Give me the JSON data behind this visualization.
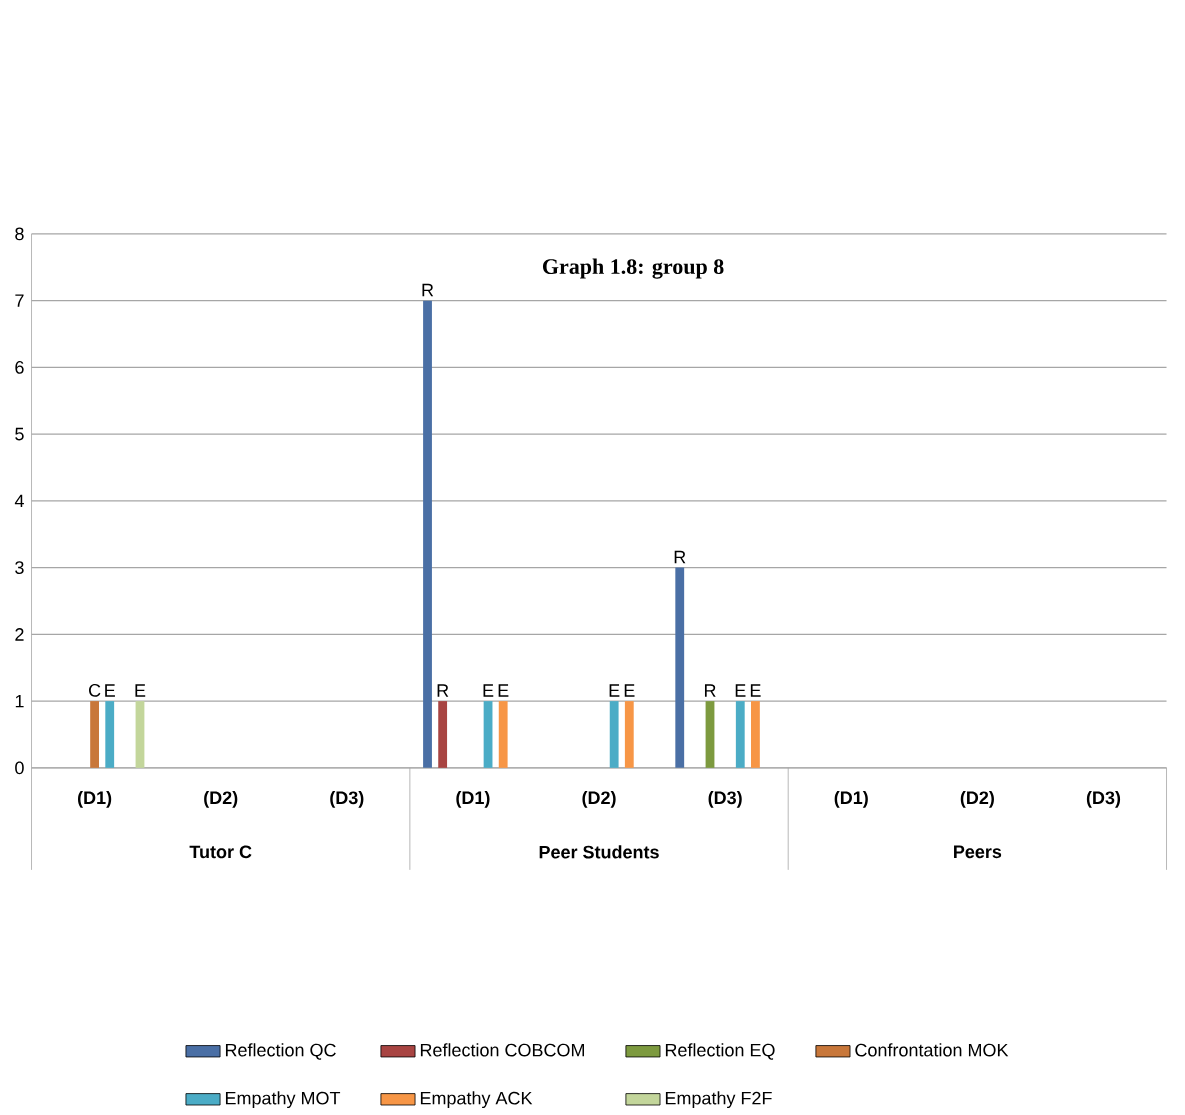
{
  "chart_data": {
    "type": "bar",
    "title": "Graph 1.8: group 8",
    "categories": [
      "(D1)",
      "(D2)",
      "(D3)",
      "(D1)",
      "(D2)",
      "(D3)",
      "(D1)",
      "(D2)",
      "(D3)"
    ],
    "annotations": [
      "Tutor C",
      "Peer Students",
      "Peers"
    ],
    "series": [
      {
        "name": "Reflection QC",
        "color": "#4a6fa5",
        "values": [
          0,
          0,
          0,
          7,
          0,
          3,
          0,
          0,
          0
        ],
        "value_labels": [
          null,
          null,
          null,
          "R",
          null,
          "R",
          null,
          null,
          null
        ]
      },
      {
        "name": "Reflection COBCOM",
        "color": "#a84442",
        "values": [
          0,
          0,
          0,
          1,
          0,
          0,
          0,
          0,
          0
        ],
        "value_labels": [
          null,
          null,
          null,
          "R",
          null,
          null,
          null,
          null,
          null
        ]
      },
      {
        "name": "Reflection EQ",
        "color": "#7d9a3f",
        "values": [
          0,
          0,
          0,
          0,
          0,
          1,
          0,
          0,
          0
        ],
        "value_labels": [
          null,
          null,
          null,
          null,
          null,
          "R",
          null,
          null,
          null
        ]
      },
      {
        "name": "Confrontation MOK",
        "color": "#c8773a",
        "values": [
          1,
          0,
          0,
          0,
          0,
          0,
          0,
          0,
          0
        ],
        "value_labels": [
          "C",
          null,
          null,
          null,
          null,
          null,
          null,
          null,
          null
        ]
      },
      {
        "name": "Empathy MOT",
        "color": "#4bacc6",
        "values": [
          1,
          0,
          0,
          1,
          1,
          1,
          0,
          0,
          0
        ],
        "value_labels": [
          "E",
          null,
          null,
          "E",
          "E",
          "E",
          null,
          null,
          null
        ]
      },
      {
        "name": "Empathy ACK",
        "color": "#f79646",
        "values": [
          0,
          0,
          0,
          1,
          1,
          1,
          0,
          0,
          0
        ],
        "value_labels": [
          null,
          null,
          null,
          "E",
          "E",
          "E",
          null,
          null,
          null
        ]
      },
      {
        "name": "Empathy F2F",
        "color": "#c3d69b",
        "values": [
          1,
          0,
          0,
          0,
          0,
          0,
          0,
          0,
          0
        ],
        "value_labels": [
          "E",
          null,
          null,
          null,
          null,
          null,
          null,
          null,
          null
        ]
      }
    ],
    "ylim": [
      0,
      8
    ],
    "yticks": [
      0,
      1,
      2,
      3,
      4,
      5,
      6,
      7,
      8
    ],
    "grid": "y",
    "legend": "bottom"
  }
}
